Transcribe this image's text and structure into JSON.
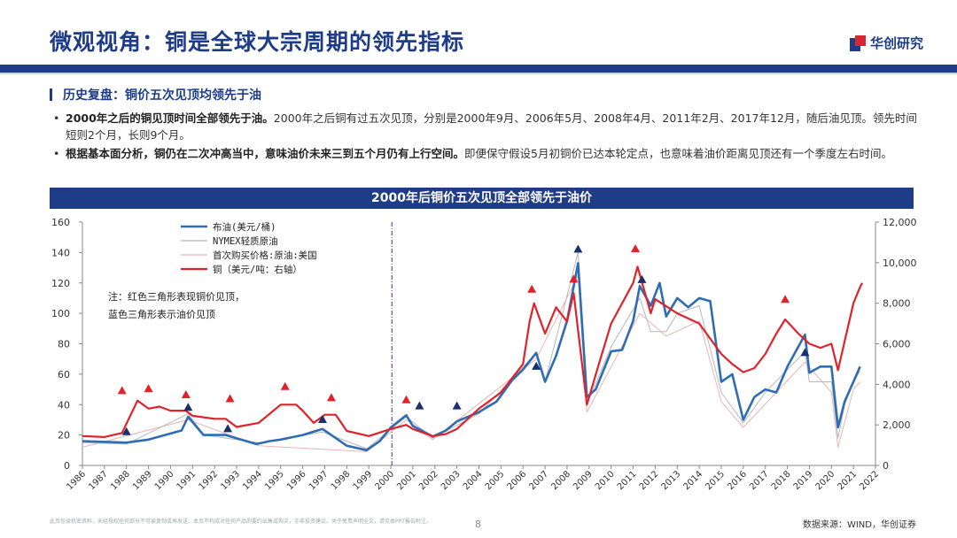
{
  "header": {
    "title": "微观视角：铜是全球大宗周期的领先指标",
    "logo_text": "华创研究"
  },
  "section_title": "历史复盘：铜价五次见顶均领先于油",
  "bullets": [
    {
      "bold": "2000年之后的铜见顶时间全部领先于油。",
      "text": "2000年之后铜有过五次见顶，分别是2000年9月、2006年5月、2008年4月、2011年2月、2017年12月，随后油见顶。领先时间短则2个月，长则9个月。"
    },
    {
      "bold": "根据基本面分析，铜仍在二次冲高当中，意味油价未来三到五个月仍有上行空间。",
      "text": "即便保守假设5月初铜价已达本轮定点，也意味着油价距离见顶还有一个季度左右时间。"
    }
  ],
  "footer": {
    "disclaimer": "此页包含机密资料，未经授权任何部分不可被复制或再发送。本页不构成对任何产品的要约出售或购买，亦非投资建议。关于免责声明全文，请见本PPT报告附注。",
    "page_number": "8",
    "source": "数据来源：WIND，华创证券"
  },
  "colors": {
    "brand": "#1f3c88",
    "brent": "#2e6db4",
    "nymex": "#b8b8b8",
    "first_purchase": "#e8b4b4",
    "copper": "#e0222a",
    "oil_peak": "#1a2f6e",
    "copper_peak": "#e0222a"
  },
  "chart_data": {
    "type": "line",
    "title": "2000年后铜价五次见顶全部领先于油价",
    "note": "注：红色三角形表现铜价见顶，蓝色三角形表示油价见顶",
    "divider_year": 2000,
    "x_ticks": [
      "1986",
      "1987",
      "1988",
      "1989",
      "1990",
      "1991",
      "1992",
      "1993",
      "1994",
      "1995",
      "1996",
      "1997",
      "1998",
      "1999",
      "2000",
      "2001",
      "2002",
      "2003",
      "2004",
      "2005",
      "2006",
      "2007",
      "2008",
      "2009",
      "2010",
      "2011",
      "2012",
      "2013",
      "2014",
      "2015",
      "2016",
      "2017",
      "2018",
      "2019",
      "2020",
      "2021",
      "2022"
    ],
    "x_range": [
      1986,
      2022
    ],
    "y_left": {
      "range": [
        0,
        160
      ],
      "ticks": [
        "0",
        "20",
        "40",
        "60",
        "80",
        "100",
        "120",
        "140",
        "160"
      ]
    },
    "y_right": {
      "range": [
        0,
        12000
      ],
      "ticks": [
        "0",
        "2,000",
        "4,000",
        "6,000",
        "8,000",
        "10,000",
        "12,000"
      ]
    },
    "legend": [
      {
        "key": "brent",
        "label": "布油(美元/桶)"
      },
      {
        "key": "nymex",
        "label": "NYMEX轻质原油"
      },
      {
        "key": "first_purchase",
        "label": "首次购买价格:原油:美国"
      },
      {
        "key": "copper",
        "label": "铜（美元/吨：右轴）"
      }
    ],
    "series": [
      {
        "key": "brent",
        "name": "布油(美元/桶)",
        "axis": "left",
        "x": [
          1986,
          1988,
          1989,
          1990.5,
          1990.8,
          1991.5,
          1992.5,
          1993.9,
          1994.5,
          1995,
          1996,
          1996.9,
          1997.5,
          1998,
          1998.9,
          1999.5,
          2000,
          2000.7,
          2001,
          2001.9,
          2002.5,
          2003,
          2004,
          2004.8,
          2005.5,
          2006,
          2006.6,
          2007,
          2007.5,
          2008,
          2008.5,
          2008.9,
          2009.3,
          2010,
          2010.5,
          2011,
          2011.3,
          2011.8,
          2012.2,
          2012.5,
          2013,
          2013.5,
          2014,
          2014.5,
          2015,
          2015.5,
          2016,
          2016.5,
          2017,
          2017.5,
          2018,
          2018.8,
          2019,
          2019.5,
          2020,
          2020.3,
          2020.6,
          2021,
          2021.3
        ],
        "values": [
          16,
          15,
          17,
          23,
          32,
          20,
          20,
          14,
          16,
          17,
          20,
          24,
          18,
          13,
          10,
          16,
          25,
          33,
          26,
          19,
          23,
          29,
          35,
          42,
          56,
          63,
          74,
          55,
          72,
          95,
          133,
          45,
          50,
          75,
          76,
          95,
          118,
          105,
          120,
          98,
          110,
          104,
          110,
          108,
          55,
          60,
          30,
          45,
          50,
          48,
          65,
          86,
          61,
          65,
          65,
          25,
          42,
          55,
          65
        ]
      },
      {
        "key": "nymex",
        "name": "NYMEX轻质原油",
        "axis": "left",
        "x": [
          1986,
          1988,
          1990.8,
          1991.5,
          1994,
          1996.9,
          1998.9,
          2000.7,
          2001.9,
          2004,
          2006.6,
          2007,
          2008.5,
          2008.9,
          2010,
          2011.3,
          2011.8,
          2012.5,
          2013,
          2014,
          2015,
          2016,
          2017,
          2018.8,
          2019,
          2020,
          2020.3,
          2020.6,
          2021,
          2021.3
        ],
        "values": [
          15,
          14,
          34,
          20,
          15,
          22,
          11,
          32,
          18,
          34,
          74,
          55,
          140,
          40,
          78,
          110,
          88,
          88,
          100,
          105,
          48,
          28,
          48,
          75,
          55,
          55,
          18,
          40,
          55,
          62
        ]
      },
      {
        "key": "first_purchase",
        "name": "首次购买价格:原油:美国",
        "axis": "left",
        "x": [
          1986,
          1990.8,
          1994,
          1998.9,
          2000.7,
          2001.9,
          2006.6,
          2008.5,
          2008.9,
          2011.3,
          2012.5,
          2014,
          2015,
          2016,
          2018.8,
          2020,
          2020.3,
          2021,
          2021.3
        ],
        "values": [
          12,
          30,
          13,
          9,
          30,
          17,
          70,
          125,
          35,
          100,
          85,
          95,
          42,
          25,
          68,
          48,
          12,
          50,
          55
        ]
      },
      {
        "key": "copper",
        "name": "铜（美元/吨：右轴）",
        "axis": "right",
        "x": [
          1986,
          1987,
          1987.8,
          1988.5,
          1989,
          1989.5,
          1990,
          1990.7,
          1991,
          1992,
          1992.5,
          1993,
          1994,
          1995,
          1995.7,
          1996,
          1996.5,
          1997,
          1997.5,
          1998,
          1999,
          2000,
          2000.7,
          2001,
          2001.9,
          2002.5,
          2003,
          2004,
          2005,
          2006,
          2006.3,
          2006.5,
          2007,
          2007.5,
          2008,
          2008.3,
          2008.9,
          2009.5,
          2010,
          2011,
          2011.2,
          2011.8,
          2012,
          2013,
          2014,
          2015,
          2015.5,
          2016,
          2016.5,
          2017,
          2017.5,
          2017.9,
          2018.5,
          2019,
          2019.5,
          2020,
          2020.3,
          2021,
          2021.3,
          2021.4
        ],
        "values": [
          1450,
          1400,
          1600,
          3200,
          2800,
          2900,
          2700,
          2700,
          2450,
          2300,
          2300,
          1900,
          2100,
          3000,
          3000,
          2700,
          2100,
          2500,
          2500,
          1700,
          1450,
          1800,
          2000,
          1800,
          1450,
          1550,
          1800,
          2800,
          3600,
          5000,
          7100,
          8000,
          6500,
          7800,
          7100,
          8500,
          3000,
          5200,
          7000,
          9000,
          9800,
          7500,
          8200,
          7500,
          7000,
          5500,
          5000,
          4600,
          4800,
          5500,
          6500,
          7200,
          6500,
          6000,
          5800,
          6000,
          4700,
          8000,
          8800,
          9000
        ]
      }
    ],
    "copper_peaks": [
      {
        "year": 1987.8,
        "value": 3300
      },
      {
        "year": 1989.0,
        "value": 3400
      },
      {
        "year": 1990.7,
        "value": 3100
      },
      {
        "year": 1992.7,
        "value": 2900
      },
      {
        "year": 1995.2,
        "value": 3500
      },
      {
        "year": 1997.3,
        "value": 2950
      },
      {
        "year": 2000.7,
        "value": 2850
      },
      {
        "year": 2006.4,
        "value": 8300
      },
      {
        "year": 2008.3,
        "value": 8800
      },
      {
        "year": 2011.1,
        "value": 10300
      },
      {
        "year": 2017.9,
        "value": 7800
      }
    ],
    "oil_peaks": [
      {
        "year": 1988.0,
        "value": 17
      },
      {
        "year": 1990.8,
        "value": 33
      },
      {
        "year": 1992.6,
        "value": 19
      },
      {
        "year": 1996.9,
        "value": 25
      },
      {
        "year": 2001.3,
        "value": 34
      },
      {
        "year": 2003.0,
        "value": 34
      },
      {
        "year": 2006.6,
        "value": 60
      },
      {
        "year": 2008.5,
        "value": 137
      },
      {
        "year": 2011.4,
        "value": 117
      },
      {
        "year": 2018.8,
        "value": 69
      }
    ]
  }
}
